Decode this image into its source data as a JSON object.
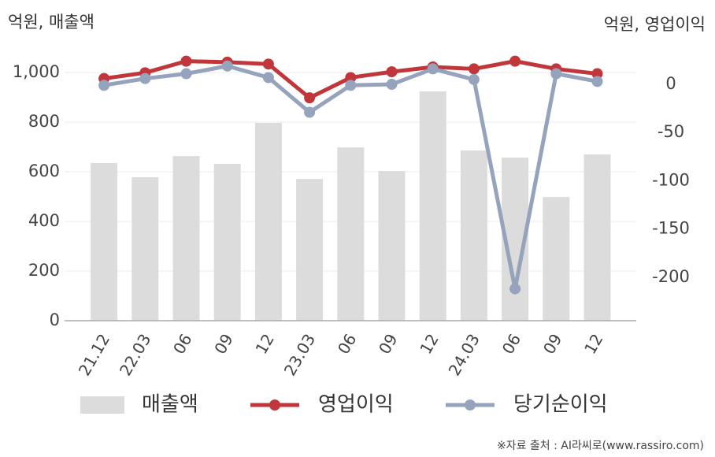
{
  "chart_data": {
    "type": "bar-line",
    "y_label": "억원, 매출액",
    "y2_label": "억원, 영업이익",
    "source": "※자료 출처 : AI라씨로(www.rassiro.com)",
    "categories": [
      "21.12",
      "22.03",
      "06",
      "09",
      "12",
      "23.03",
      "06",
      "09",
      "12",
      "24.03",
      "06",
      "09",
      "12"
    ],
    "series": [
      {
        "name": "매출액",
        "type": "bar",
        "color": "#dcdcdc",
        "values": [
          635,
          578,
          663,
          632,
          797,
          571,
          698,
          603,
          924,
          686,
          657,
          498,
          670
        ]
      },
      {
        "name": "영업이익",
        "type": "line",
        "axis": "y2",
        "color": "#c0363a",
        "values": [
          6,
          12,
          24,
          23,
          21,
          -14,
          7,
          13,
          18,
          16,
          24,
          16,
          11
        ]
      },
      {
        "name": "당기순이익",
        "type": "line",
        "axis": "y2",
        "color": "#95a3bd",
        "values": [
          -1,
          6,
          11,
          19,
          7,
          -29,
          -1,
          0,
          16,
          5,
          -212,
          11,
          3
        ]
      }
    ],
    "ylim": [
      0,
      1100
    ],
    "yticks": [
      0,
      200,
      400,
      600,
      800,
      {
        "value": 1000,
        "label": "1,000"
      }
    ],
    "y2lim": [
      -245,
      38
    ],
    "y2ticks": [
      0,
      -50,
      -100,
      -150,
      -200
    ],
    "grid": true
  }
}
